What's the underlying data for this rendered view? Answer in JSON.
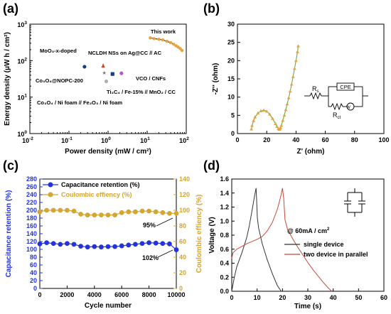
{
  "chart_data": [
    {
      "panel": "(a)",
      "type": "scatter",
      "xlabel": "Power density (mW / cm²)",
      "ylabel": "Energy density (μW h / cm²)",
      "xscale": "log",
      "yscale": "log",
      "xlim": [
        0.01,
        100
      ],
      "ylim": [
        1,
        1000
      ],
      "xticks": [
        {
          "v": 0.01,
          "m": "10",
          "e": "-2"
        },
        {
          "v": 0.1,
          "m": "10",
          "e": "-1"
        },
        {
          "v": 1,
          "m": "10",
          "e": "0"
        },
        {
          "v": 10,
          "m": "10",
          "e": "1"
        },
        {
          "v": 100,
          "m": "10",
          "e": "2"
        }
      ],
      "yticks": [
        {
          "v": 1,
          "m": "10",
          "e": "0"
        },
        {
          "v": 10,
          "m": "10",
          "e": "1"
        },
        {
          "v": 100,
          "m": "10",
          "e": "2"
        },
        {
          "v": 1000,
          "m": "10",
          "e": "3"
        }
      ],
      "this_work_label": "This work",
      "this_work": {
        "x": [
          12,
          15,
          20,
          25,
          32,
          40,
          48,
          55,
          62,
          70,
          78
        ],
        "y": [
          420,
          400,
          385,
          370,
          340,
          310,
          280,
          255,
          235,
          215,
          190
        ],
        "color": "#e8a33d"
      },
      "points": [
        {
          "label": "MoO₃-x-doped",
          "x": 0.25,
          "y": 68,
          "color": "#1b3a8a",
          "marker": "circle"
        },
        {
          "label": "NCLDH NSs on Ag@CC // AC",
          "x": 0.75,
          "y": 72,
          "color": "#c8482e",
          "marker": "triangle"
        },
        {
          "label": "Co₃O₄@NOPC-200",
          "x": 0.8,
          "y": 46,
          "color": "#777777",
          "marker": "star"
        },
        {
          "label": "VCO / CNFs",
          "x": 2.2,
          "y": 45,
          "color": "#b05cc4",
          "marker": "circle"
        },
        {
          "label": "Ti₃C₄ / Fe-15% // MnO₂ / CC",
          "x": 1.3,
          "y": 43,
          "color": "#1b3a8a",
          "marker": "square"
        },
        {
          "label": "Co₃O₄ / Ni foam // Fe₂O₃ / Ni foam",
          "x": 0.9,
          "y": 27,
          "color": "#b0b0b0",
          "marker": "circle"
        }
      ]
    },
    {
      "panel": "(b)",
      "type": "line",
      "xlabel": "Z' (ohm)",
      "ylabel": "-Z'' (ohm)",
      "xlim": [
        0,
        100
      ],
      "ylim": [
        0,
        30
      ],
      "xticks": [
        0,
        20,
        40,
        60,
        80,
        100
      ],
      "yticks": [
        0,
        5,
        10,
        15,
        20,
        25,
        30
      ],
      "series": [
        {
          "x": [
            9.5,
            10,
            11,
            12,
            14,
            16,
            18,
            20,
            22,
            24,
            26,
            27,
            28,
            28.5,
            29,
            29.5,
            30,
            31,
            32,
            33,
            34,
            35,
            36,
            37,
            38,
            39,
            40,
            41,
            41.5
          ],
          "y": [
            1.2,
            2.2,
            3.5,
            4.5,
            5.6,
            6.2,
            6.4,
            6.1,
            5.3,
            4.1,
            2.7,
            1.9,
            1.3,
            1.1,
            1.2,
            1.6,
            2.2,
            3.6,
            5.0,
            6.5,
            8.1,
            9.8,
            11.6,
            13.5,
            15.6,
            17.8,
            20.0,
            22.4,
            24.0
          ],
          "color": "#e8a33d",
          "line_color": "#4aa84a"
        }
      ],
      "circuit": {
        "r_s": "R",
        "r_s_sub": "s",
        "cpe": "CPE",
        "r_ct": "R",
        "r_ct_sub": "ct",
        "w": "W"
      }
    },
    {
      "panel": "(c)",
      "type": "line",
      "xlabel": "Cycle number",
      "ylabel": "Capacitance retention (%)",
      "y2label": "Coulombic effiency (%)",
      "xlim": [
        0,
        10000
      ],
      "ylim": [
        0,
        280
      ],
      "y2lim": [
        0,
        140
      ],
      "xticks": [
        0,
        2000,
        4000,
        6000,
        8000,
        10000
      ],
      "yticks": [
        0,
        20,
        40,
        60,
        80,
        100,
        120,
        140,
        160,
        180,
        200,
        220,
        240,
        260,
        280
      ],
      "y2ticks": [
        0,
        20,
        40,
        60,
        80,
        100,
        120,
        140
      ],
      "series": [
        {
          "name": "Capacitance retention (%)",
          "color": "#2233dd",
          "x": [
            0,
            500,
            1000,
            1500,
            2000,
            2500,
            3000,
            3500,
            4000,
            4500,
            5000,
            5500,
            6000,
            6500,
            7000,
            7500,
            8000,
            8500,
            9000,
            9500,
            10000
          ],
          "y": [
            114,
            117,
            115,
            113,
            115,
            113,
            108,
            106,
            107,
            106,
            107,
            107,
            109,
            111,
            113,
            115,
            117,
            116,
            115,
            114,
            99
          ]
        },
        {
          "name": "Coulombic effiency (%)",
          "color": "#d4a530",
          "axis": "right",
          "x": [
            0,
            500,
            1000,
            1500,
            2000,
            2500,
            3000,
            3500,
            4000,
            4500,
            5000,
            5500,
            6000,
            6500,
            7000,
            7500,
            8000,
            8500,
            9000,
            9500,
            10000
          ],
          "y": [
            98,
            100,
            100,
            100,
            100,
            99,
            95,
            94,
            94,
            94,
            94,
            94,
            97,
            98,
            98,
            99,
            99,
            98,
            97,
            96,
            96
          ]
        }
      ],
      "annotations": [
        {
          "text": "95%"
        },
        {
          "text": "102%"
        }
      ]
    },
    {
      "panel": "(d)",
      "type": "line",
      "xlabel": "Time (s)",
      "ylabel": "Voltage (V)",
      "xlim": [
        0,
        60
      ],
      "ylim": [
        0,
        1.6
      ],
      "xticks": [
        0,
        10,
        20,
        30,
        40,
        50,
        60
      ],
      "yticks": [
        0.0,
        0.2,
        0.4,
        0.6,
        0.8,
        1.0,
        1.2,
        1.4,
        1.6
      ],
      "condition_text": "@ 60mA / cm",
      "condition_sup": "2",
      "series": [
        {
          "name": "single device",
          "color": "#333333",
          "x": [
            0,
            1,
            2,
            3,
            4,
            5,
            6,
            7,
            8,
            9,
            9.6,
            9.8,
            10.1,
            10.6,
            12,
            14,
            16,
            18,
            19.5
          ],
          "y": [
            0.0,
            0.2,
            0.35,
            0.45,
            0.55,
            0.66,
            0.78,
            0.95,
            1.15,
            1.36,
            1.47,
            1.3,
            1.05,
            0.9,
            0.68,
            0.45,
            0.25,
            0.08,
            0.0
          ]
        },
        {
          "name": "two device in parallel",
          "color": "#c8483a",
          "x": [
            0,
            0.5,
            2,
            4,
            6,
            8,
            10,
            12,
            14,
            16,
            18,
            19.5,
            20,
            20.5,
            21,
            22,
            24,
            26,
            28,
            30,
            32,
            34,
            36,
            38,
            39.5
          ],
          "y": [
            0.47,
            0.55,
            0.6,
            0.64,
            0.68,
            0.71,
            0.74,
            0.78,
            0.86,
            0.98,
            1.17,
            1.38,
            1.47,
            1.32,
            1.02,
            0.88,
            0.75,
            0.63,
            0.52,
            0.41,
            0.31,
            0.22,
            0.13,
            0.05,
            0.0
          ]
        }
      ]
    }
  ]
}
